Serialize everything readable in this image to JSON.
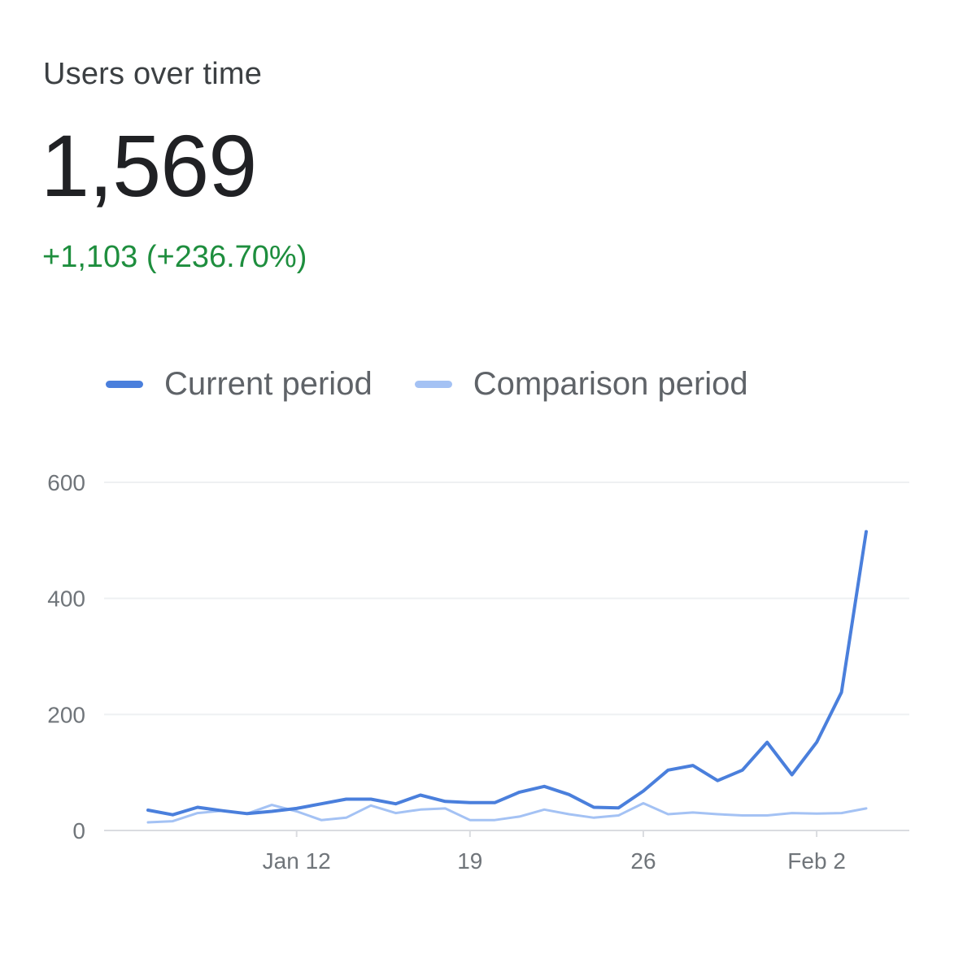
{
  "card": {
    "title": "Users over time",
    "value": "1,569",
    "delta": "+1,103 (+236.70%)",
    "delta_color": "#1e8e3e"
  },
  "legend": {
    "current_label": "Current period",
    "comparison_label": "Comparison period",
    "current_color": "#4a7fdc",
    "comparison_color": "#a4c2f4"
  },
  "chart_data": {
    "type": "line",
    "title": "Users over time",
    "xlabel": "",
    "ylabel": "",
    "ylim": [
      0,
      600
    ],
    "y_ticks": [
      0,
      200,
      400,
      600
    ],
    "x_tick_labels": [
      {
        "index": 6,
        "label": "Jan 12"
      },
      {
        "index": 13,
        "label": "19"
      },
      {
        "index": 20,
        "label": "26"
      },
      {
        "index": 27,
        "label": "Feb 2"
      }
    ],
    "grid": true,
    "legend_position": "top-left",
    "series": [
      {
        "name": "Current period",
        "color": "#4a7fdc",
        "values": [
          35,
          27,
          40,
          34,
          29,
          33,
          38,
          46,
          54,
          54,
          46,
          61,
          50,
          48,
          48,
          66,
          76,
          62,
          40,
          39,
          68,
          104,
          112,
          86,
          104,
          152,
          96,
          152,
          238,
          515
        ]
      },
      {
        "name": "Comparison period",
        "color": "#a4c2f4",
        "values": [
          14,
          16,
          30,
          34,
          29,
          44,
          33,
          18,
          22,
          43,
          30,
          36,
          38,
          18,
          18,
          24,
          36,
          28,
          22,
          26,
          47,
          28,
          31,
          28,
          26,
          26,
          30,
          29,
          30,
          38
        ]
      }
    ]
  }
}
